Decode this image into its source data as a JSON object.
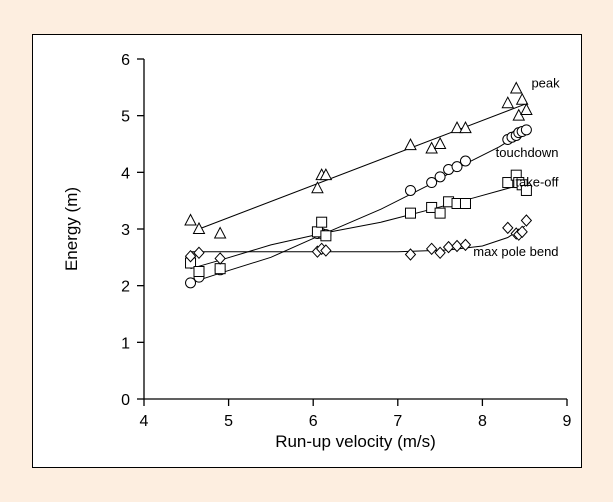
{
  "colors": {
    "background": "#fdeee0",
    "panel": "#ffffff",
    "ink": "#000000"
  },
  "chart_data": {
    "type": "scatter",
    "title": "",
    "xlabel": "Run-up velocity (m/s)",
    "ylabel": "Energy (m)",
    "xlim": [
      4,
      9
    ],
    "ylim": [
      0,
      6
    ],
    "xticks": [
      4,
      5,
      6,
      7,
      8,
      9
    ],
    "yticks": [
      0,
      1,
      2,
      3,
      4,
      5,
      6
    ],
    "grid": false,
    "legend": "none (series labelled at the right end of each fitted line)",
    "series": [
      {
        "name": "peak",
        "marker": "triangle",
        "points": [
          [
            4.55,
            3.15
          ],
          [
            4.65,
            3.0
          ],
          [
            4.9,
            2.92
          ],
          [
            6.05,
            3.72
          ],
          [
            6.1,
            3.95
          ],
          [
            6.15,
            3.95
          ],
          [
            7.15,
            4.48
          ],
          [
            7.4,
            4.42
          ],
          [
            7.5,
            4.5
          ],
          [
            7.7,
            4.78
          ],
          [
            7.8,
            4.78
          ],
          [
            8.3,
            5.22
          ],
          [
            8.4,
            5.48
          ],
          [
            8.43,
            5.0
          ],
          [
            8.47,
            5.28
          ],
          [
            8.52,
            5.1
          ]
        ],
        "trend": [
          [
            4.65,
            3.0
          ],
          [
            8.5,
            5.2
          ]
        ]
      },
      {
        "name": "touchdown",
        "marker": "circle",
        "points": [
          [
            4.55,
            2.05
          ],
          [
            4.65,
            2.15
          ],
          [
            4.9,
            2.28
          ],
          [
            6.05,
            2.92
          ],
          [
            6.1,
            2.92
          ],
          [
            6.15,
            2.9
          ],
          [
            7.15,
            3.68
          ],
          [
            7.4,
            3.82
          ],
          [
            7.5,
            3.92
          ],
          [
            7.6,
            4.05
          ],
          [
            7.7,
            4.1
          ],
          [
            7.8,
            4.2
          ],
          [
            8.3,
            4.58
          ],
          [
            8.35,
            4.62
          ],
          [
            8.4,
            4.65
          ],
          [
            8.43,
            4.7
          ],
          [
            8.47,
            4.72
          ],
          [
            8.52,
            4.75
          ]
        ],
        "trend": [
          [
            4.55,
            2.05
          ],
          [
            4.9,
            2.22
          ],
          [
            5.5,
            2.5
          ],
          [
            6.1,
            2.9
          ],
          [
            6.8,
            3.35
          ],
          [
            7.4,
            3.8
          ],
          [
            7.8,
            4.15
          ],
          [
            8.2,
            4.45
          ],
          [
            8.5,
            4.73
          ]
        ]
      },
      {
        "name": "take-off",
        "marker": "square",
        "points": [
          [
            4.55,
            2.4
          ],
          [
            4.65,
            2.25
          ],
          [
            4.9,
            2.3
          ],
          [
            6.05,
            2.95
          ],
          [
            6.1,
            3.12
          ],
          [
            6.15,
            2.88
          ],
          [
            7.15,
            3.28
          ],
          [
            7.4,
            3.38
          ],
          [
            7.5,
            3.28
          ],
          [
            7.6,
            3.48
          ],
          [
            7.7,
            3.45
          ],
          [
            7.8,
            3.45
          ],
          [
            8.3,
            3.82
          ],
          [
            8.4,
            3.95
          ],
          [
            8.43,
            3.82
          ],
          [
            8.47,
            3.78
          ],
          [
            8.52,
            3.68
          ]
        ],
        "trend": [
          [
            4.55,
            2.3
          ],
          [
            4.9,
            2.45
          ],
          [
            5.5,
            2.72
          ],
          [
            6.1,
            2.92
          ],
          [
            6.8,
            3.12
          ],
          [
            7.4,
            3.35
          ],
          [
            7.9,
            3.55
          ],
          [
            8.5,
            3.8
          ]
        ]
      },
      {
        "name": "max pole bend",
        "marker": "diamond",
        "points": [
          [
            4.55,
            2.52
          ],
          [
            4.65,
            2.58
          ],
          [
            4.9,
            2.48
          ],
          [
            6.05,
            2.6
          ],
          [
            6.1,
            2.65
          ],
          [
            6.15,
            2.62
          ],
          [
            7.15,
            2.55
          ],
          [
            7.4,
            2.65
          ],
          [
            7.5,
            2.58
          ],
          [
            7.6,
            2.68
          ],
          [
            7.7,
            2.7
          ],
          [
            7.8,
            2.72
          ],
          [
            8.3,
            3.02
          ],
          [
            8.4,
            2.92
          ],
          [
            8.43,
            2.9
          ],
          [
            8.47,
            2.95
          ],
          [
            8.52,
            3.15
          ]
        ],
        "trend": [
          [
            4.55,
            2.6
          ],
          [
            6.1,
            2.6
          ],
          [
            7.0,
            2.6
          ],
          [
            7.6,
            2.63
          ],
          [
            8.0,
            2.7
          ],
          [
            8.3,
            2.85
          ],
          [
            8.5,
            3.05
          ]
        ]
      }
    ]
  }
}
